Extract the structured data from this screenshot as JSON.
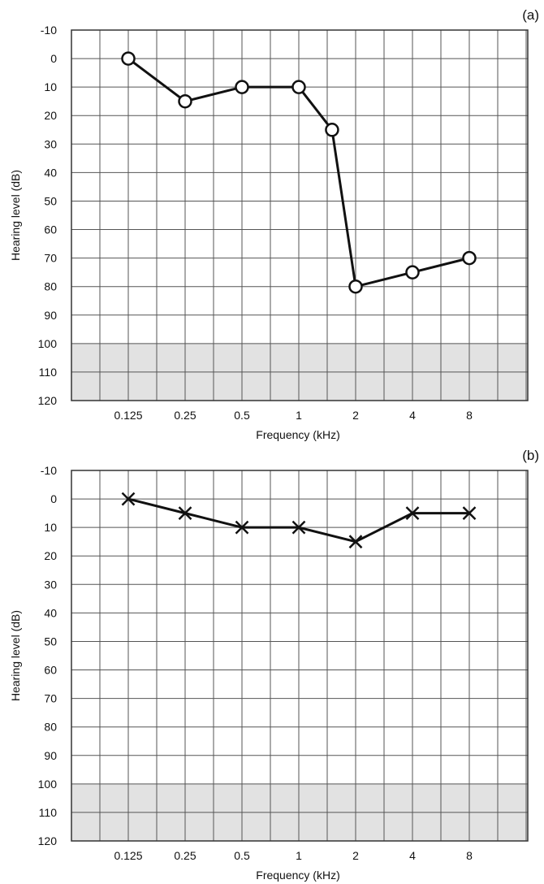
{
  "chart_data": [
    {
      "type": "line",
      "panel_label": "(a)",
      "xlabel": "Frequency (kHz)",
      "ylabel": "Hearing level (dB)",
      "categories": [
        "0.125",
        "0.25",
        "0.5",
        "1",
        "2",
        "4",
        "8"
      ],
      "x": [
        0.125,
        0.25,
        0.5,
        1,
        1.5,
        2,
        4,
        8
      ],
      "series": [
        {
          "marker": "circle",
          "values": [
            0,
            15,
            10,
            10,
            25,
            80,
            75,
            70
          ]
        }
      ],
      "ylim": [
        -10,
        120
      ],
      "y_reversed": true,
      "yticks": [
        "-10",
        "0",
        "10",
        "20",
        "30",
        "40",
        "50",
        "60",
        "70",
        "80",
        "90",
        "100",
        "110",
        "120"
      ],
      "shaded_region_y": [
        100,
        120
      ],
      "grid": true
    },
    {
      "type": "line",
      "panel_label": "(b)",
      "xlabel": "Frequency (kHz)",
      "ylabel": "Hearing level (dB)",
      "categories": [
        "0.125",
        "0.25",
        "0.5",
        "1",
        "2",
        "4",
        "8"
      ],
      "x": [
        0.125,
        0.25,
        0.5,
        1,
        2,
        4,
        8
      ],
      "series": [
        {
          "marker": "x",
          "values": [
            0,
            5,
            10,
            10,
            15,
            5,
            5
          ]
        }
      ],
      "ylim": [
        -10,
        120
      ],
      "y_reversed": true,
      "yticks": [
        "-10",
        "0",
        "10",
        "20",
        "30",
        "40",
        "50",
        "60",
        "70",
        "80",
        "90",
        "100",
        "110",
        "120"
      ],
      "shaded_region_y": [
        100,
        120
      ],
      "grid": true
    }
  ],
  "colors": {
    "line": "#111111",
    "grid": "#555555",
    "shade": "#e2e2e2",
    "background": "#ffffff"
  }
}
